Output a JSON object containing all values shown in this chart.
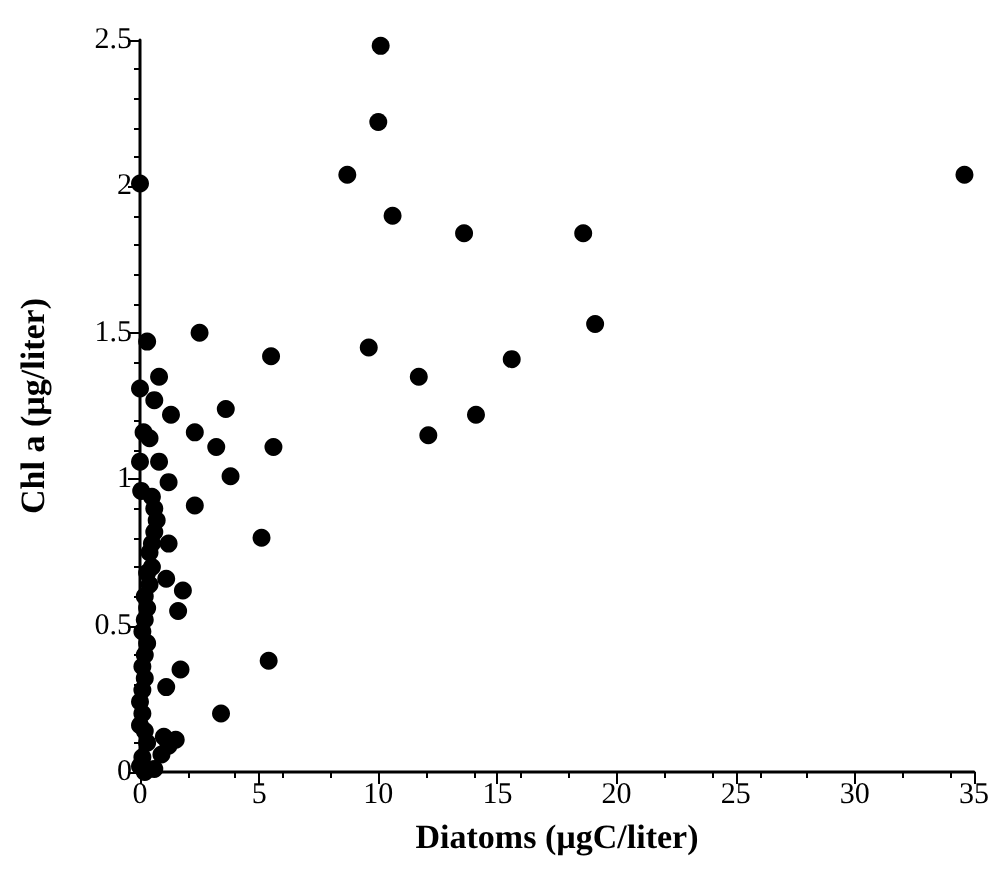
{
  "chart_data": {
    "type": "scatter",
    "xlabel": "Diatoms (µgC/liter)",
    "ylabel": "Chl a (µg/liter)",
    "xlim": [
      0,
      35
    ],
    "ylim": [
      0,
      2.5
    ],
    "xticks": [
      0,
      5,
      10,
      15,
      20,
      25,
      30,
      35
    ],
    "yticks": [
      0,
      0.5,
      1,
      1.5,
      2,
      2.5
    ],
    "grid": false,
    "marker": "circle",
    "series": [
      {
        "color": "#000000",
        "x": [
          10.1,
          10.0,
          8.7,
          10.6,
          9.6,
          0.0,
          2.5,
          0.3,
          5.5,
          0.0,
          0.8,
          0.6,
          3.6,
          1.3,
          0.15,
          0.4,
          2.3,
          3.2,
          5.6,
          0.8,
          0.0,
          3.8,
          1.2,
          0.05,
          2.3,
          5.1,
          1.2,
          1.8,
          1.6,
          1.1,
          5.4,
          1.7,
          1.1,
          3.4,
          1.5,
          34.6,
          13.6,
          18.6,
          19.1,
          15.6,
          11.7,
          14.1,
          12.1,
          0.5,
          0.6,
          0.7,
          0.6,
          0.5,
          0.4,
          0.5,
          0.3,
          0.4,
          0.2,
          0.3,
          0.2,
          0.1,
          0.3,
          0.2,
          0.1,
          0.2,
          0.1,
          0.0,
          0.1,
          0.0,
          0.2,
          1.0,
          0.9,
          1.2,
          0.1,
          0.2,
          0.6,
          0.0,
          0.3
        ],
        "values": [
          2.48,
          2.22,
          2.04,
          1.9,
          1.45,
          2.01,
          1.5,
          1.47,
          1.42,
          1.31,
          1.35,
          1.27,
          1.24,
          1.22,
          1.16,
          1.14,
          1.16,
          1.11,
          1.11,
          1.06,
          1.06,
          1.01,
          0.99,
          0.96,
          0.91,
          0.8,
          0.78,
          0.62,
          0.55,
          0.66,
          0.38,
          0.35,
          0.29,
          0.2,
          0.11,
          2.04,
          1.84,
          1.84,
          1.53,
          1.41,
          1.35,
          1.22,
          1.15,
          0.94,
          0.9,
          0.86,
          0.82,
          0.78,
          0.75,
          0.7,
          0.68,
          0.64,
          0.6,
          0.56,
          0.52,
          0.48,
          0.44,
          0.4,
          0.36,
          0.32,
          0.28,
          0.24,
          0.2,
          0.16,
          0.14,
          0.12,
          0.06,
          0.09,
          0.05,
          0.0,
          0.01,
          0.02,
          0.1
        ]
      }
    ]
  }
}
